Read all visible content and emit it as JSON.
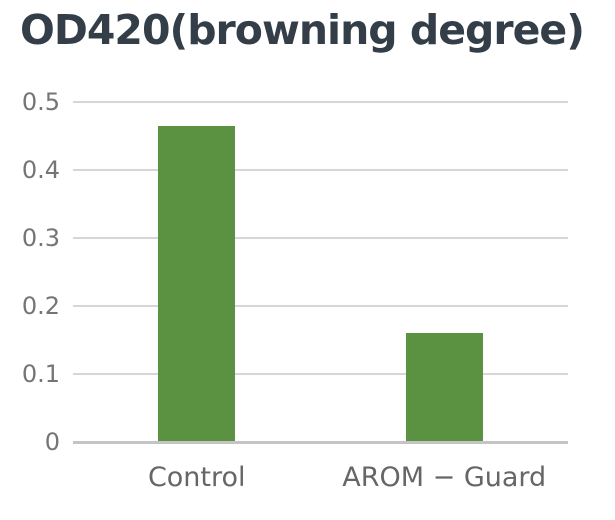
{
  "chart_data": {
    "type": "bar",
    "title": "OD420(browning degree)",
    "categories": [
      "Control",
      "AROM − Guard"
    ],
    "values": [
      0.465,
      0.16
    ],
    "xlabel": "",
    "ylabel": "",
    "ylim": [
      0,
      0.5
    ],
    "yticks": [
      0,
      0.1,
      0.2,
      0.3,
      0.4,
      0.5
    ],
    "ytick_labels": [
      "0",
      "0.1",
      "0.2",
      "0.3",
      "0.4",
      "0.5"
    ],
    "grid": true,
    "legend_position": "none",
    "bar_color": "#5a9242",
    "colors": {
      "title": "#333e48",
      "y_tick_label": "#757575",
      "x_tick_label": "#666666",
      "gridline": "#d6d6d6",
      "axis_line": "#c4c4c4",
      "background": "#ffffff"
    }
  }
}
